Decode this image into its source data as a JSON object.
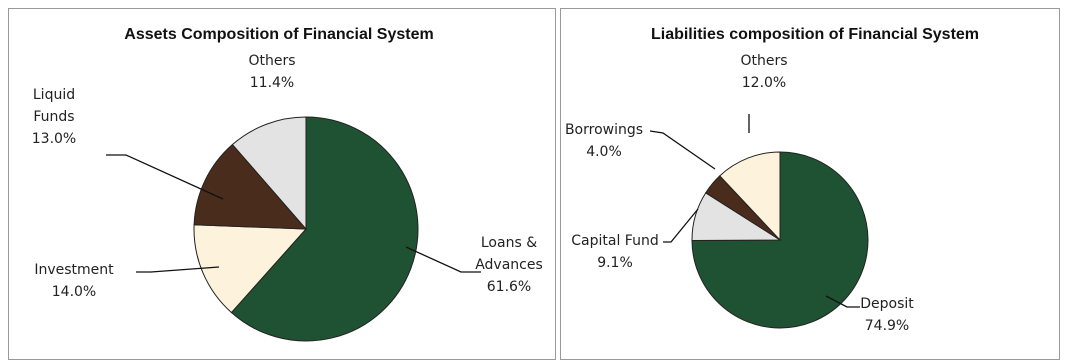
{
  "chart_data": [
    {
      "type": "pie",
      "title": "Assets Composition of Financial System",
      "slices": [
        {
          "name": "Loans & Advances",
          "value": 61.6,
          "label_lines": [
            "Loans &",
            "Advances",
            "61.6%"
          ],
          "color": "#1f5233"
        },
        {
          "name": "Investment",
          "value": 14.0,
          "label_lines": [
            "Investment",
            "14.0%"
          ],
          "color": "#fdf2dc"
        },
        {
          "name": "Liquid Funds",
          "value": 13.0,
          "label_lines": [
            "Liquid",
            "Funds",
            "13.0%"
          ],
          "color": "#4a2c1c"
        },
        {
          "name": "Others",
          "value": 11.4,
          "label_lines": [
            "Others",
            "11.4%"
          ],
          "color": "#e3e3e3"
        }
      ]
    },
    {
      "type": "pie",
      "title": "Liabilities composition of Financial System",
      "slices": [
        {
          "name": "Deposit",
          "value": 74.9,
          "label_lines": [
            "Deposit",
            "74.9%"
          ],
          "color": "#1f5233"
        },
        {
          "name": "Capital Fund",
          "value": 9.1,
          "label_lines": [
            "Capital Fund",
            "9.1%"
          ],
          "color": "#e3e3e3"
        },
        {
          "name": "Borrowings",
          "value": 4.0,
          "label_lines": [
            "Borrowings",
            "4.0%"
          ],
          "color": "#4a2c1c"
        },
        {
          "name": "Others",
          "value": 12.0,
          "label_lines": [
            "Others",
            "12.0%"
          ],
          "color": "#fdf2dc"
        }
      ]
    }
  ]
}
